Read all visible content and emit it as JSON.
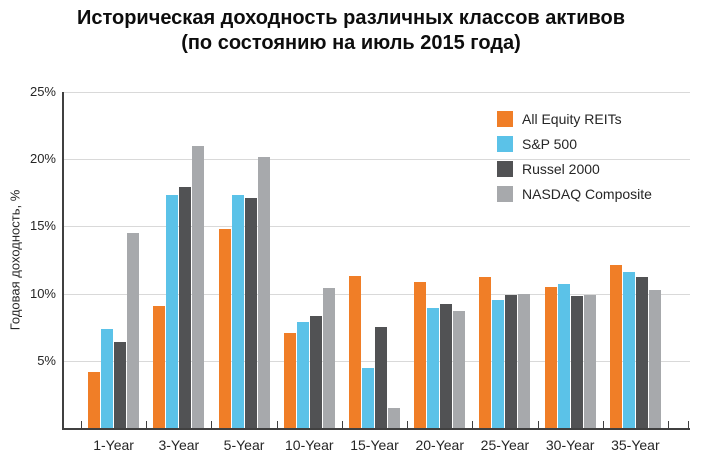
{
  "title": {
    "line1": "Историческая доходность различных классов активов",
    "line2": "(по состоянию на июль 2015 года)"
  },
  "chart_data": {
    "type": "bar",
    "title": "Историческая доходность различных классов активов (по состоянию на июль 2015 года)",
    "ylabel": "Годовая доходность, %",
    "xlabel": "",
    "ylim": [
      0,
      25
    ],
    "grid": true,
    "legend_position": "inside-top-right",
    "yticks": [
      {
        "value": 5,
        "label": "5%"
      },
      {
        "value": 10,
        "label": "10%"
      },
      {
        "value": 15,
        "label": "15%"
      },
      {
        "value": 20,
        "label": "20%"
      },
      {
        "value": 25,
        "label": "25%"
      }
    ],
    "categories": [
      "1-Year",
      "3-Year",
      "5-Year",
      "10-Year",
      "15-Year",
      "20-Year",
      "25-Year",
      "30-Year",
      "35-Year"
    ],
    "series": [
      {
        "name": "All Equity REITs",
        "color": "#F07E27",
        "values": [
          4.2,
          9.1,
          14.8,
          7.1,
          11.3,
          10.9,
          11.2,
          10.5,
          12.1
        ]
      },
      {
        "name": "S&P 500",
        "color": "#5BC2E8",
        "values": [
          7.4,
          17.3,
          17.3,
          7.9,
          4.5,
          8.9,
          9.5,
          10.7,
          11.6
        ]
      },
      {
        "name": "Russel 2000",
        "color": "#515254",
        "values": [
          6.4,
          17.9,
          17.1,
          8.3,
          7.5,
          9.2,
          9.9,
          9.8,
          11.2
        ]
      },
      {
        "name": "NASDAQ Composite",
        "color": "#A7A9AC",
        "values": [
          14.5,
          21.0,
          20.2,
          10.4,
          1.5,
          8.7,
          10.0,
          9.9,
          10.3
        ]
      }
    ]
  }
}
